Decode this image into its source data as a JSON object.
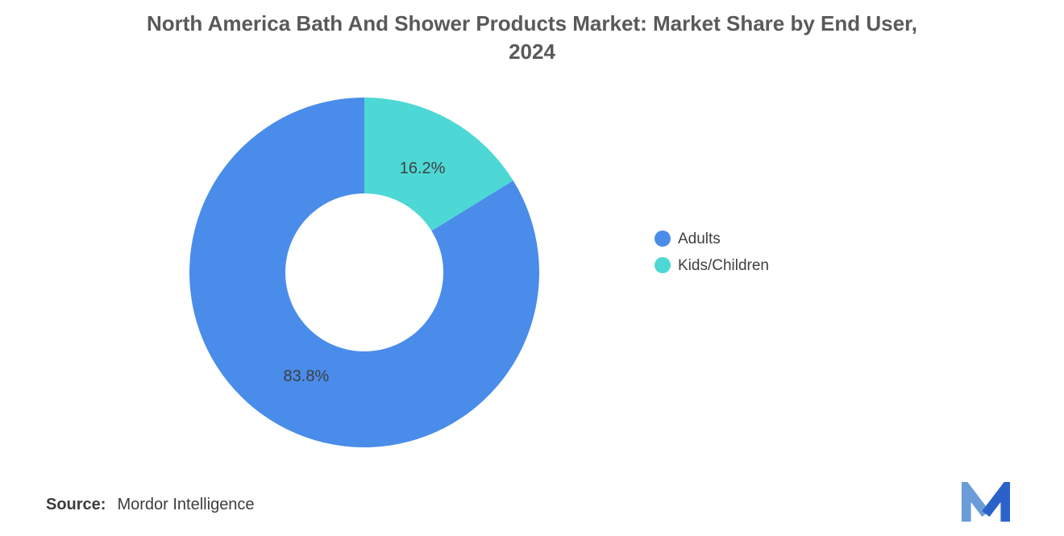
{
  "title": {
    "line1": "North America Bath And Shower Products Market: Market Share by End User,",
    "line2": "2024"
  },
  "chart_data": {
    "type": "pie",
    "subtype": "donut",
    "title": "North America Bath And Shower Products Market: Market Share by End User, 2024",
    "unit": "%",
    "categories": [
      "Adults",
      "Kids/Children"
    ],
    "values": [
      83.8,
      16.2
    ],
    "start_angle_deg": 0,
    "direction": "clockwise",
    "legend_position": "right",
    "inner_radius_ratio": 0.45,
    "slices": [
      {
        "label": "Kids/Children",
        "value": 16.2,
        "data_label": "16.2%",
        "color": "#4DD8D5"
      },
      {
        "label": "Adults",
        "value": 83.8,
        "data_label": "83.8%",
        "color": "#4A8CEA"
      }
    ]
  },
  "legend": {
    "items": [
      {
        "label": "Adults",
        "color": "#4A8CEA"
      },
      {
        "label": "Kids/Children",
        "color": "#4DD8D5"
      }
    ]
  },
  "source": {
    "label": "Source:",
    "value": "Mordor Intelligence"
  },
  "logo": {
    "name": "mordor-intelligence-logo",
    "color_light": "#6A9CD8",
    "color_dark": "#2B62C9"
  }
}
